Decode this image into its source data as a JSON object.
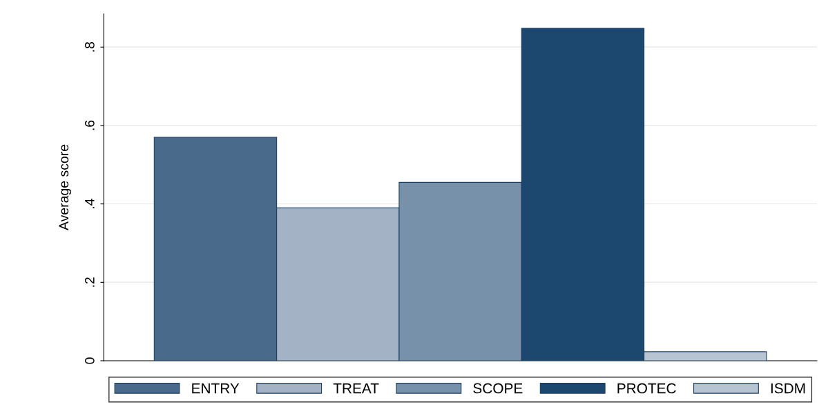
{
  "chart_data": {
    "type": "bar",
    "ylabel": "Average score",
    "categories": [
      null
    ],
    "series": [
      {
        "name": "ENTRY",
        "color": "#4a6a8c",
        "values": [
          0.57
        ]
      },
      {
        "name": "TREAT",
        "color": "#a3b3c5",
        "values": [
          0.39
        ]
      },
      {
        "name": "SCOPE",
        "color": "#7891aa",
        "values": [
          0.455
        ]
      },
      {
        "name": "PROTEC",
        "color": "#1c4870",
        "values": [
          0.848
        ]
      },
      {
        "name": "ISDM",
        "color": "#b7c5d2",
        "values": [
          0.023
        ]
      }
    ],
    "ylim": [
      0,
      0.885
    ],
    "yticks": [
      0,
      {
        "value": 0.2,
        "label": ".2"
      },
      {
        "value": 0.4,
        "label": ".4"
      },
      {
        "value": 0.6,
        "label": ".6"
      },
      {
        "value": 0.8,
        "label": ".8"
      }
    ],
    "grid": "y",
    "legend": "bottom",
    "tick_labels": "y"
  }
}
